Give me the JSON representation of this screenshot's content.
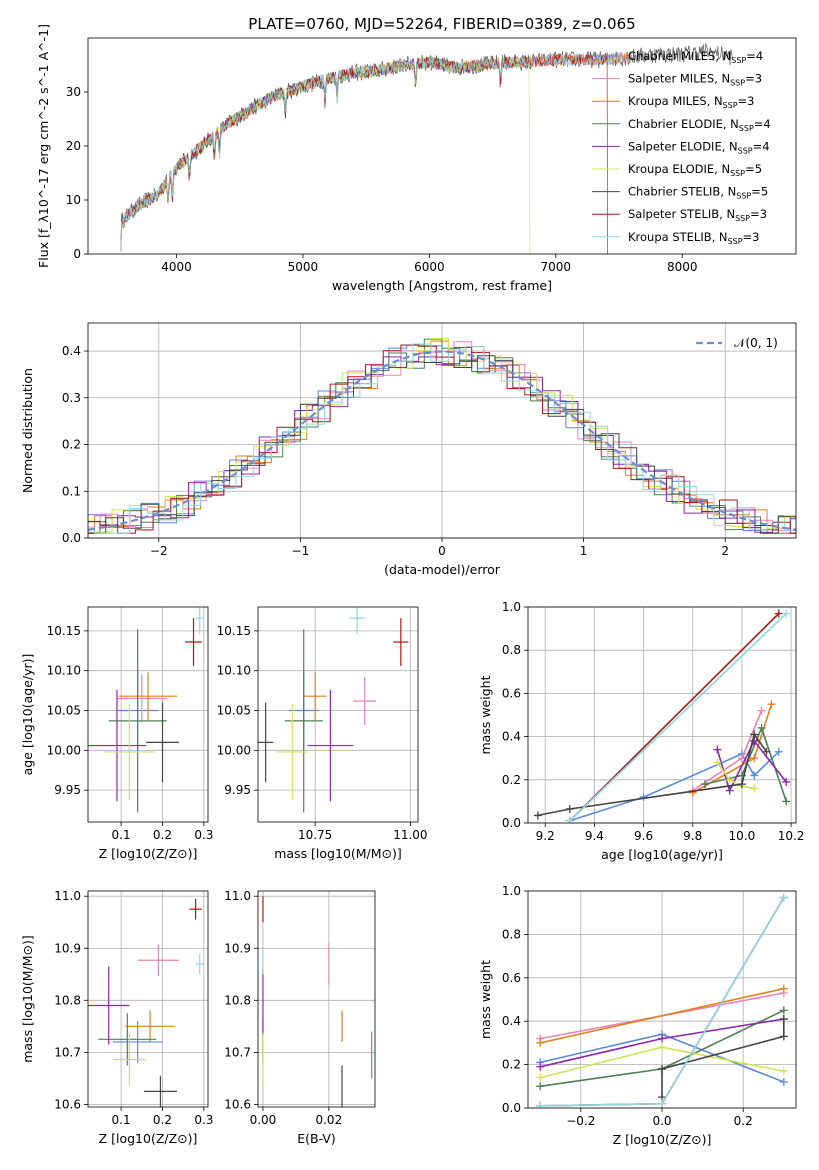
{
  "figure_title": "PLATE=0760, MJD=52264, FIBERID=0389, z=0.065",
  "models": [
    {
      "name": "Chabrier MILES",
      "nssp": "4",
      "color": "#5b8bd6"
    },
    {
      "name": "Salpeter MILES",
      "nssp": "3",
      "color": "#e585b8"
    },
    {
      "name": "Kroupa MILES",
      "nssp": "3",
      "color": "#e57e1a"
    },
    {
      "name": "Chabrier ELODIE",
      "nssp": "4",
      "color": "#4f7f57"
    },
    {
      "name": "Salpeter ELODIE",
      "nssp": "4",
      "color": "#8c2aa8"
    },
    {
      "name": "Kroupa ELODIE",
      "nssp": "5",
      "color": "#d4e157"
    },
    {
      "name": "Chabrier STELIB",
      "nssp": "5",
      "color": "#444444"
    },
    {
      "name": "Salpeter STELIB",
      "nssp": "3",
      "color": "#a61a1a"
    },
    {
      "name": "Kroupa STELIB",
      "nssp": "3",
      "color": "#8fd8e0"
    }
  ],
  "chart_data": [
    {
      "id": "spectrum",
      "type": "line",
      "xlabel": "wavelength [Angstrom, rest frame]",
      "ylabel": "Flux [f_λ10^-17 erg cm^-2 s^-1 A^-1]",
      "xlim": [
        3300,
        8900
      ],
      "ylim": [
        0,
        40
      ],
      "xticks": [
        "4000",
        "5000",
        "6000",
        "7000",
        "8000"
      ],
      "yticks": [
        "0",
        "10",
        "20",
        "30"
      ],
      "legend": "upper-right",
      "continuum_x": [
        3560,
        3700,
        3850,
        4000,
        4200,
        4400,
        4600,
        4800,
        5000,
        5200,
        5400,
        5600,
        5800,
        6000,
        6200,
        6400,
        6600,
        6800,
        7000,
        7200,
        7400,
        7600,
        7800,
        8000,
        8200,
        8400
      ],
      "continuum_y": [
        6,
        9,
        11,
        16,
        20,
        24,
        27,
        29.5,
        31,
        32.5,
        33.5,
        34,
        35,
        35.5,
        34.5,
        35,
        35.5,
        35.5,
        36,
        36,
        36,
        36.5,
        37,
        37,
        37.5,
        36.5
      ]
    },
    {
      "id": "residuals",
      "type": "line",
      "xlabel": "(data-model)/error",
      "ylabel": "Normed distribution",
      "xlim": [
        -2.5,
        2.5
      ],
      "ylim": [
        0,
        0.46
      ],
      "xticks": [
        "−2",
        "−1",
        "0",
        "1",
        "2"
      ],
      "yticks": [
        "0.0",
        "0.1",
        "0.2",
        "0.3",
        "0.4"
      ],
      "grid": true,
      "legend": "upper-right",
      "reference_label": "𝒩(0, 1)",
      "reference_color": "#6b8fd6"
    },
    {
      "id": "age_vs_Z",
      "type": "scatter",
      "xlabel": "Z [log10(Z/Z⊙)]",
      "ylabel": "age [log10(age/yr)]",
      "xlim": [
        0.02,
        0.31
      ],
      "ylim": [
        9.91,
        10.18
      ],
      "xticks": [
        "0.1",
        "0.2",
        "0.3"
      ],
      "yticks": [
        "9.95",
        "10.00",
        "10.05",
        "10.10",
        "10.15"
      ],
      "grid": true,
      "points": [
        {
          "m": 0,
          "x": 0.14,
          "xerr": 0.05,
          "y": 10.05,
          "yerr": 0.05
        },
        {
          "m": 1,
          "x": 0.15,
          "xerr": 0.06,
          "y": 10.065,
          "yerr": 0.03
        },
        {
          "m": 2,
          "x": 0.165,
          "xerr": 0.07,
          "y": 10.068,
          "yerr": 0.03
        },
        {
          "m": 3,
          "x": 0.14,
          "xerr": 0.07,
          "y": 10.037,
          "yerr": 0.115
        },
        {
          "m": 4,
          "x": 0.09,
          "xerr": 0.07,
          "y": 10.006,
          "yerr": 0.07
        },
        {
          "m": 5,
          "x": 0.12,
          "xerr": 0.06,
          "y": 9.998,
          "yerr": 0.06
        },
        {
          "m": 6,
          "x": 0.2,
          "xerr": 0.04,
          "y": 10.01,
          "yerr": 0.05
        },
        {
          "m": 7,
          "x": 0.275,
          "xerr": 0.02,
          "y": 10.136,
          "yerr": 0.03
        },
        {
          "m": 8,
          "x": 0.29,
          "xerr": 0.01,
          "y": 10.166,
          "yerr": 0.02
        }
      ]
    },
    {
      "id": "age_vs_mass",
      "type": "scatter",
      "xlabel": "mass [log10(M/M⊙)]",
      "ylabel": "",
      "xlim": [
        10.6,
        11.02
      ],
      "ylim": [
        9.91,
        10.18
      ],
      "xticks": [
        "10.75",
        "11.00"
      ],
      "yticks": [
        "9.95",
        "10.00",
        "10.05",
        "10.10",
        "10.15"
      ],
      "grid": true,
      "points": [
        {
          "m": 0,
          "x": 10.72,
          "xerr": 0.04,
          "y": 10.05,
          "yerr": 0.05
        },
        {
          "m": 1,
          "x": 10.88,
          "xerr": 0.03,
          "y": 10.062,
          "yerr": 0.03
        },
        {
          "m": 2,
          "x": 10.75,
          "xerr": 0.03,
          "y": 10.068,
          "yerr": 0.03
        },
        {
          "m": 3,
          "x": 10.72,
          "xerr": 0.05,
          "y": 10.037,
          "yerr": 0.115
        },
        {
          "m": 4,
          "x": 10.79,
          "xerr": 0.06,
          "y": 10.006,
          "yerr": 0.07
        },
        {
          "m": 5,
          "x": 10.69,
          "xerr": 0.04,
          "y": 9.998,
          "yerr": 0.06
        },
        {
          "m": 6,
          "x": 10.62,
          "xerr": 0.02,
          "y": 10.01,
          "yerr": 0.05
        },
        {
          "m": 7,
          "x": 10.975,
          "xerr": 0.02,
          "y": 10.136,
          "yerr": 0.03
        },
        {
          "m": 8,
          "x": 10.86,
          "xerr": 0.02,
          "y": 10.166,
          "yerr": 0.02
        }
      ]
    },
    {
      "id": "mass_vs_Z",
      "type": "scatter",
      "xlabel": "Z [log10(Z/Z⊙)]",
      "ylabel": "mass [log10(M/M⊙)]",
      "xlim": [
        0.02,
        0.31
      ],
      "ylim": [
        10.595,
        11.01
      ],
      "xticks": [
        "0.1",
        "0.2",
        "0.3"
      ],
      "yticks": [
        "10.6",
        "10.7",
        "10.8",
        "10.9",
        "11.0"
      ],
      "grid": true,
      "points": [
        {
          "m": 0,
          "x": 0.14,
          "xerr": 0.06,
          "y": 10.72,
          "yerr": 0.04
        },
        {
          "m": 1,
          "x": 0.19,
          "xerr": 0.05,
          "y": 10.877,
          "yerr": 0.03
        },
        {
          "m": 2,
          "x": 0.17,
          "xerr": 0.06,
          "y": 10.75,
          "yerr": 0.03
        },
        {
          "m": 3,
          "x": 0.115,
          "xerr": 0.07,
          "y": 10.725,
          "yerr": 0.05
        },
        {
          "m": 4,
          "x": 0.07,
          "xerr": 0.05,
          "y": 10.79,
          "yerr": 0.075
        },
        {
          "m": 5,
          "x": 0.12,
          "xerr": 0.04,
          "y": 10.686,
          "yerr": 0.05
        },
        {
          "m": 6,
          "x": 0.195,
          "xerr": 0.04,
          "y": 10.625,
          "yerr": 0.03
        },
        {
          "m": 7,
          "x": 0.28,
          "xerr": 0.015,
          "y": 10.975,
          "yerr": 0.02
        },
        {
          "m": 8,
          "x": 0.29,
          "xerr": 0.01,
          "y": 10.87,
          "yerr": 0.02
        }
      ]
    },
    {
      "id": "mass_vs_ebv",
      "type": "scatter",
      "xlabel": "E(B-V)",
      "ylabel": "",
      "xlim": [
        -0.0015,
        0.034
      ],
      "ylim": [
        10.595,
        11.01
      ],
      "xticks": [
        "0.00",
        "0.02"
      ],
      "yticks": [
        "10.6",
        "10.7",
        "10.8",
        "10.9",
        "11.0"
      ],
      "grid": true,
      "points": [
        {
          "m": 0,
          "x": 0.033,
          "xerr": 0,
          "y": 10.695,
          "yerr": 0.045
        },
        {
          "m": 1,
          "x": 0.02,
          "xerr": 0,
          "y": 10.87,
          "yerr": 0.04
        },
        {
          "m": 2,
          "x": 0.024,
          "xerr": 0,
          "y": 10.75,
          "yerr": 0.03
        },
        {
          "m": 3,
          "x": 0.0,
          "xerr": 0,
          "y": 10.72,
          "yerr": 0.04
        },
        {
          "m": 4,
          "x": 0.0,
          "xerr": 0,
          "y": 10.8,
          "yerr": 0.06
        },
        {
          "m": 5,
          "x": 0.0,
          "xerr": 0,
          "y": 10.685,
          "yerr": 0.05
        },
        {
          "m": 6,
          "x": 0.024,
          "xerr": 0,
          "y": 10.635,
          "yerr": 0.04
        },
        {
          "m": 7,
          "x": 0.0,
          "xerr": 0,
          "y": 10.975,
          "yerr": 0.025
        },
        {
          "m": 8,
          "x": 0.0,
          "xerr": 0,
          "y": 10.87,
          "yerr": 0.02
        }
      ]
    },
    {
      "id": "weight_vs_age",
      "type": "line",
      "xlabel": "age [log10(age/yr)]",
      "ylabel": "mass weight",
      "xlim": [
        9.13,
        10.22
      ],
      "ylim": [
        0,
        1
      ],
      "xticks": [
        "9.2",
        "9.4",
        "9.6",
        "9.8",
        "10.0",
        "10.2"
      ],
      "yticks": [
        "0.0",
        "0.2",
        "0.4",
        "0.6",
        "0.8",
        "1.0"
      ],
      "grid": true,
      "series": [
        {
          "m": 0,
          "x": [
            9.3,
            9.6,
            10.0,
            10.05,
            10.15
          ],
          "y": [
            0.01,
            0.12,
            0.32,
            0.22,
            0.33
          ]
        },
        {
          "m": 1,
          "x": [
            9.8,
            10.0,
            10.08
          ],
          "y": [
            0.15,
            0.3,
            0.52
          ]
        },
        {
          "m": 2,
          "x": [
            9.8,
            10.05,
            10.12
          ],
          "y": [
            0.14,
            0.3,
            0.55
          ]
        },
        {
          "m": 3,
          "x": [
            9.85,
            10.0,
            10.08,
            10.18
          ],
          "y": [
            0.18,
            0.22,
            0.44,
            0.1
          ]
        },
        {
          "m": 4,
          "x": [
            9.9,
            9.95,
            10.05,
            10.18
          ],
          "y": [
            0.34,
            0.15,
            0.38,
            0.19
          ]
        },
        {
          "m": 5,
          "x": [
            9.9,
            9.95,
            10.0,
            10.05
          ],
          "y": [
            0.28,
            0.2,
            0.17,
            0.16
          ]
        },
        {
          "m": 6,
          "x": [
            9.17,
            9.3,
            10.0,
            10.05,
            10.1
          ],
          "y": [
            0.035,
            0.065,
            0.18,
            0.41,
            0.33
          ]
        },
        {
          "m": 7,
          "x": [
            9.3,
            10.15
          ],
          "y": [
            0.01,
            0.97
          ]
        },
        {
          "m": 8,
          "x": [
            9.3,
            10.18
          ],
          "y": [
            0.01,
            0.97
          ]
        }
      ]
    },
    {
      "id": "weight_vs_Z",
      "type": "line",
      "xlabel": "Z [log10(Z/Z⊙)]",
      "ylabel": "mass weight",
      "xlim": [
        -0.33,
        0.33
      ],
      "ylim": [
        0,
        1
      ],
      "xticks": [
        "−0.2",
        "0.0",
        "0.2"
      ],
      "yticks": [
        "0.0",
        "0.2",
        "0.4",
        "0.6",
        "0.8",
        "1.0"
      ],
      "grid": true,
      "series": [
        {
          "m": 0,
          "x": [
            -0.3,
            0.0,
            0.3
          ],
          "y": [
            0.21,
            0.34,
            0.12
          ]
        },
        {
          "m": 1,
          "x": [
            -0.3,
            0.3
          ],
          "y": [
            0.32,
            0.53
          ]
        },
        {
          "m": 2,
          "x": [
            -0.3,
            0.3
          ],
          "y": [
            0.3,
            0.55
          ]
        },
        {
          "m": 3,
          "x": [
            -0.3,
            0.0,
            0.3
          ],
          "y": [
            0.1,
            0.18,
            0.45
          ]
        },
        {
          "m": 4,
          "x": [
            -0.3,
            0.0,
            0.3
          ],
          "y": [
            0.19,
            0.32,
            0.41
          ]
        },
        {
          "m": 5,
          "x": [
            -0.3,
            0.0,
            0.3
          ],
          "y": [
            0.14,
            0.28,
            0.17
          ]
        },
        {
          "m": 6,
          "x": [
            0.0,
            0.0,
            0.3,
            0.3
          ],
          "y": [
            0.05,
            0.18,
            0.33,
            0.41
          ]
        },
        {
          "m": 7,
          "x": [
            -0.3,
            0.0,
            0.3
          ],
          "y": [
            0.01,
            0.02,
            0.97
          ]
        },
        {
          "m": 8,
          "x": [
            -0.3,
            0.0,
            0.3
          ],
          "y": [
            0.01,
            0.02,
            0.97
          ]
        }
      ]
    }
  ]
}
